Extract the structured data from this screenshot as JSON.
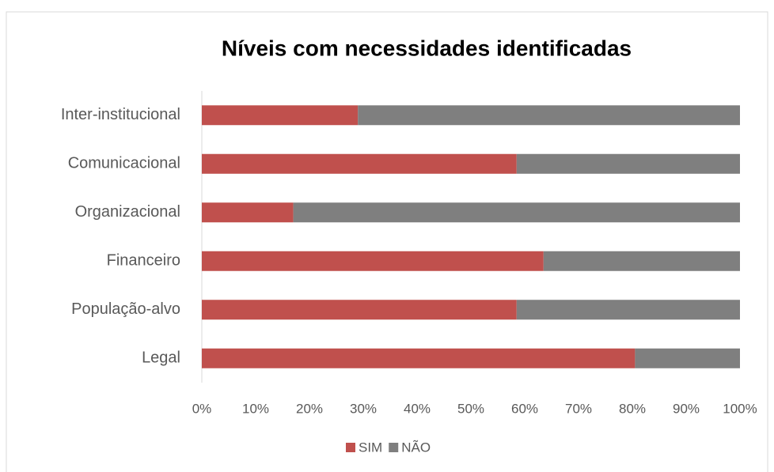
{
  "chart_data": {
    "type": "stacked_bar_horizontal",
    "title": "Níveis com necessidades identificadas",
    "categories": [
      "Inter-institucional",
      "Comunicacional",
      "Organizacional",
      "Financeiro ",
      "População-alvo",
      "Legal"
    ],
    "series": [
      {
        "name": "SIM",
        "color": "#c0504d",
        "values": [
          29,
          58.5,
          17,
          63.5,
          58.5,
          80.5
        ]
      },
      {
        "name": "NÃO",
        "color": "#7f7f7f",
        "values": [
          71,
          41.5,
          83,
          36.5,
          41.5,
          19.5
        ]
      }
    ],
    "xlim": [
      0,
      100
    ],
    "xticks": [
      {
        "value": 0,
        "label": "0%"
      },
      {
        "value": 10,
        "label": "10%"
      },
      {
        "value": 20,
        "label": "20%"
      },
      {
        "value": 30,
        "label": "30%"
      },
      {
        "value": 40,
        "label": "40%"
      },
      {
        "value": 50,
        "label": "50%"
      },
      {
        "value": 60,
        "label": "60%"
      },
      {
        "value": 70,
        "label": "70%"
      },
      {
        "value": 80,
        "label": "80%"
      },
      {
        "value": 90,
        "label": "90%"
      },
      {
        "value": 100,
        "label": "100%"
      }
    ],
    "grid": false,
    "legend": "bottom"
  }
}
